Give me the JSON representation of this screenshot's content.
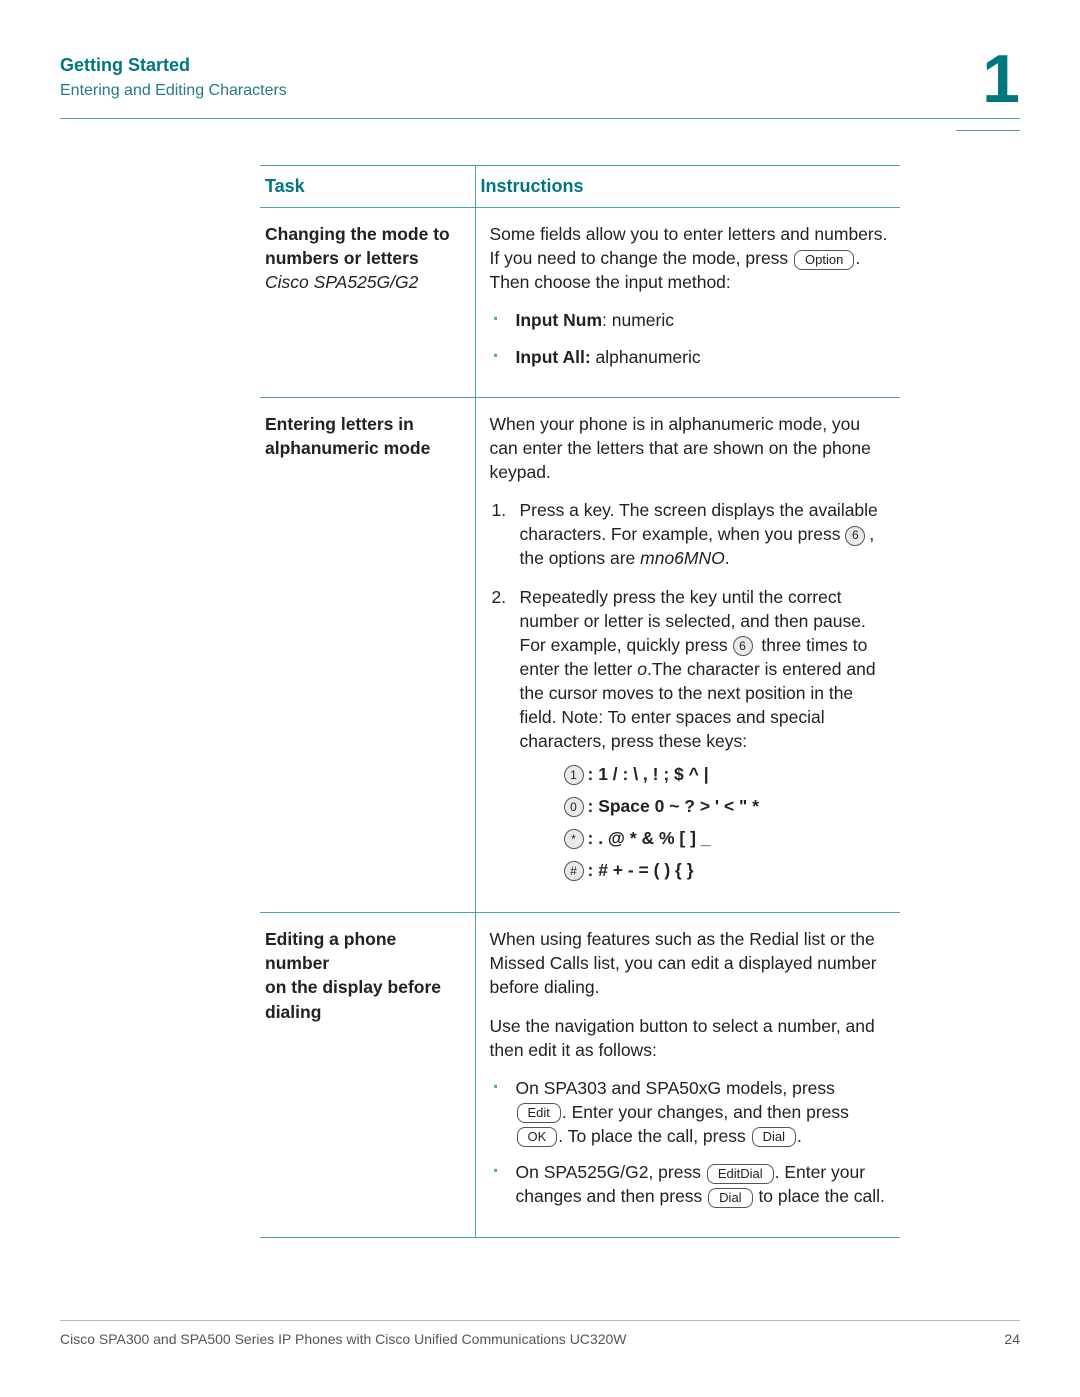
{
  "header": {
    "title": "Getting Started",
    "subtitle": "Entering and Editing Characters",
    "chapter_number": "1"
  },
  "table": {
    "col_task": "Task",
    "col_instr": "Instructions",
    "rows": [
      {
        "task_l1": "Changing the mode to",
        "task_l2": "numbers or letters",
        "task_model": "Cisco SPA525G/G2",
        "intro_a": "Some fields allow you to enter letters and numbers. If you need to change the mode, press ",
        "softkey_option": "Option",
        "intro_b": ". Then choose the input method:",
        "bullet1_strong": "Input Num",
        "bullet1_rest": ": numeric",
        "bullet2_strong": "Input All:",
        "bullet2_rest": " alphanumeric"
      },
      {
        "task_l1": "Entering letters in",
        "task_l2": "alphanumeric mode",
        "intro": "When your phone is in alphanumeric mode, you can enter the letters that are shown on the phone keypad.",
        "step1_a": "Press a key. The screen displays the available characters. For example, when you press ",
        "step1_key": "6",
        "step1_b": ", the options are ",
        "step1_chars": "mno6MNO",
        "step1_c": ".",
        "step2_a": "Repeatedly press the key until the correct number or letter is selected, and then pause. For example, quickly press ",
        "step2_key": "6",
        "step2_b": " three times to enter the letter ",
        "step2_letter": "o",
        "step2_c": ".The character is entered and the cursor moves to the next position in the field. Note: To enter spaces and special characters, press these keys:",
        "keylines": [
          {
            "key": "1",
            "chars": ":  1   /  :  \\  ,  !  ;  $  ^  |"
          },
          {
            "key": "0",
            "chars": ":  Space  0  ~  ?  >  '  <  \"  *"
          },
          {
            "key": "*",
            "chars": ":  .  @  *  &  %  [  ]  _"
          },
          {
            "key": "#",
            "chars": ":  #  +  -  =  (  )  {  }"
          }
        ]
      },
      {
        "task_l1": "Editing a phone number",
        "task_l2": "on the display before",
        "task_l3": "dialing",
        "intro": "When using features such as the Redial list or the Missed Calls list, you can edit a displayed number before dialing.",
        "para2": "Use the navigation button to select a number, and then edit it as follows:",
        "b1_a": "On SPA303 and SPA50xG models, press ",
        "sk_edit": "Edit",
        "b1_b": ". Enter your changes, and then press ",
        "sk_ok": "OK",
        "b1_c": ". To place the call, press ",
        "sk_dial": "Dial",
        "b1_d": ".",
        "b2_a": "On SPA525G/G2, press ",
        "sk_editdial": "EditDial",
        "b2_b": ". Enter your changes and then press ",
        "sk_dial2": "Dial",
        "b2_c": " to place the call."
      }
    ]
  },
  "footer": {
    "text": "Cisco SPA300 and SPA500 Series IP Phones with Cisco Unified Communications UC320W",
    "page": "24"
  },
  "colors": {
    "accent": "#007680",
    "rule": "#4aa6ae"
  }
}
